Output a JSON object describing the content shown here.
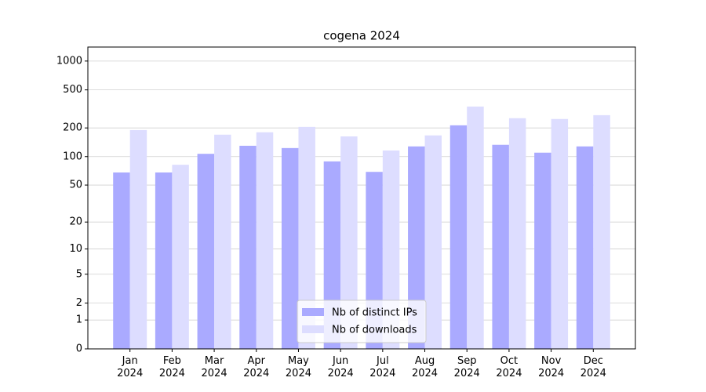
{
  "chart_data": {
    "type": "bar",
    "title": "cogena 2024",
    "scale": "log1p",
    "categories": [
      "Jan\n2024",
      "Feb\n2024",
      "Mar\n2024",
      "Apr\n2024",
      "May\n2024",
      "Jun\n2024",
      "Jul\n2024",
      "Aug\n2024",
      "Sep\n2024",
      "Oct\n2024",
      "Nov\n2024",
      "Dec\n2024"
    ],
    "series": [
      {
        "name": "Nb of distinct IPs",
        "color": "#aaaaff",
        "values": [
          68,
          68,
          107,
          130,
          123,
          89,
          69,
          128,
          213,
          133,
          110,
          128
        ]
      },
      {
        "name": "Nb of downloads",
        "color": "#ddddff",
        "values": [
          190,
          82,
          170,
          180,
          205,
          163,
          116,
          167,
          335,
          253,
          248,
          272
        ]
      }
    ],
    "ylim": [
      0,
      1400
    ],
    "yticks": [
      0,
      1,
      2,
      5,
      10,
      20,
      50,
      100,
      200,
      500,
      1000
    ],
    "grid": true,
    "legend": "lower center"
  }
}
